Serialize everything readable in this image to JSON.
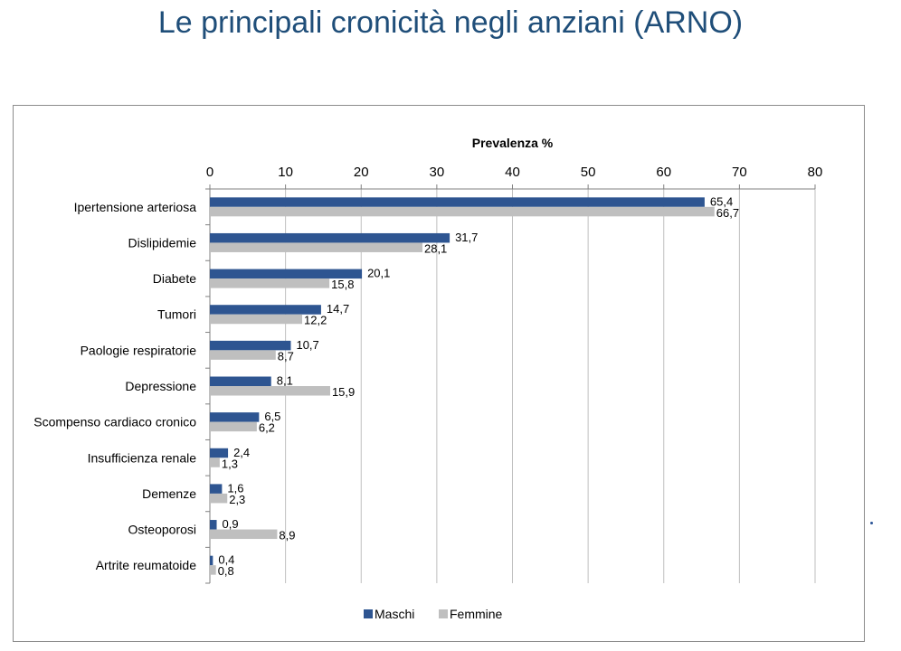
{
  "page": {
    "title": "Le principali cronicità negli anziani (ARNO)"
  },
  "chart_data": {
    "type": "bar",
    "orientation": "horizontal",
    "title": "Prevalenza %",
    "xlabel": "",
    "ylabel": "",
    "xlim": [
      0,
      80
    ],
    "xticks": [
      0,
      10,
      20,
      30,
      40,
      50,
      60,
      70,
      80
    ],
    "axis_position": "top",
    "grid": true,
    "legend_position": "bottom",
    "categories": [
      "Ipertensione arteriosa",
      "Dislipidemie",
      "Diabete",
      "Tumori",
      "Paologie respiratorie",
      "Depressione",
      "Scompenso cardiaco cronico",
      "Insufficienza renale",
      "Demenze",
      "Osteoporosi",
      "Artrite reumatoide"
    ],
    "series": [
      {
        "name": "Maschi",
        "color": "#2e5591",
        "values": [
          65.4,
          31.7,
          20.1,
          14.7,
          10.7,
          8.1,
          6.5,
          2.4,
          1.6,
          0.9,
          0.4
        ],
        "labels": [
          "65,4",
          "31,7",
          "20,1",
          "14,7",
          "10,7",
          "8,1",
          "6,5",
          "2,4",
          "1,6",
          "0,9",
          "0,4"
        ]
      },
      {
        "name": "Femmine",
        "color": "#bfbfbf",
        "values": [
          66.7,
          28.1,
          15.8,
          12.2,
          8.7,
          15.9,
          6.2,
          1.3,
          2.3,
          8.9,
          0.8
        ],
        "labels": [
          "66,7",
          "28,1",
          "15,8",
          "12,2",
          "8,7",
          "15,9",
          "6,2",
          "1,3",
          "2,3",
          "8,9",
          "0,8"
        ]
      }
    ]
  }
}
